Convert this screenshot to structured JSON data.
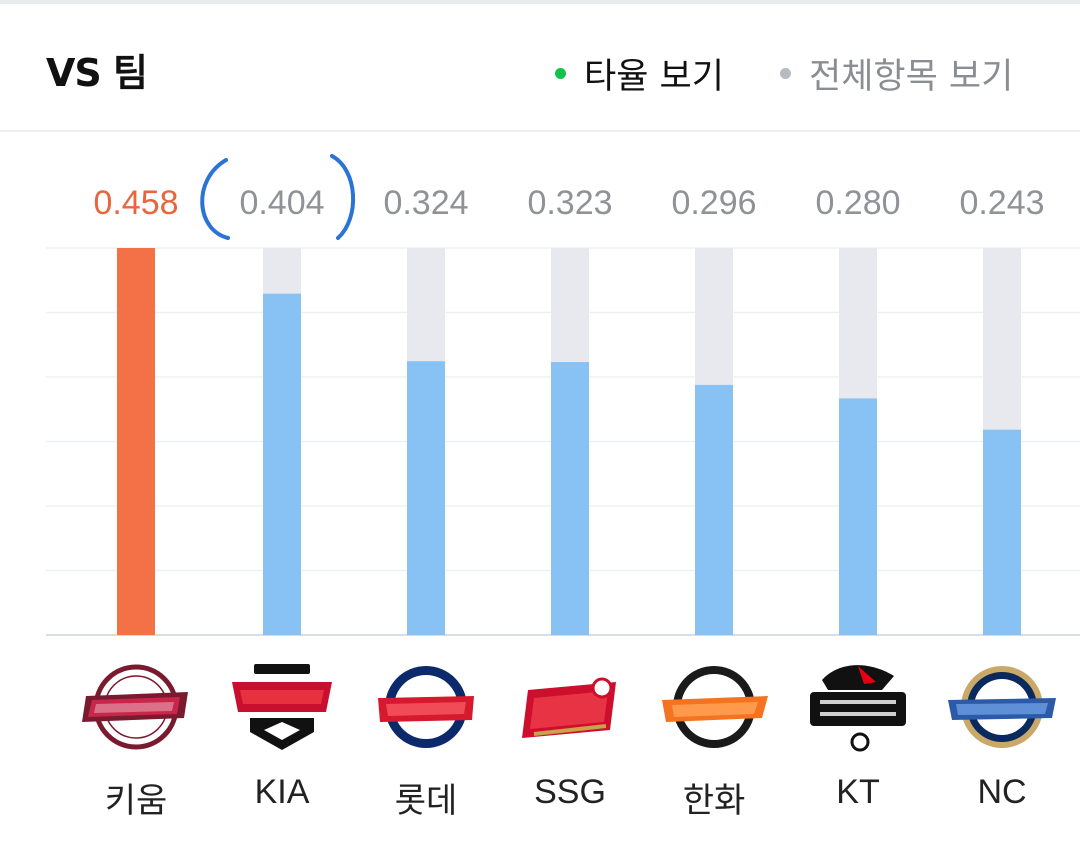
{
  "header": {
    "title": "VS 팀",
    "toggle_active": "타율 보기",
    "toggle_inactive": "전체항목 보기"
  },
  "colors": {
    "highlight_bar": "#f47148",
    "bar": "#88c2f5",
    "bar_track": "#e7e9ee",
    "highlight_value": "#e8663e",
    "value": "#8f9296",
    "annotation": "#2b74d6",
    "active_dot": "#14c24a"
  },
  "chart_data": {
    "type": "bar",
    "categories": [
      "키움",
      "KIA",
      "롯데",
      "SSG",
      "한화",
      "KT",
      "NC"
    ],
    "values": [
      0.458,
      0.404,
      0.324,
      0.323,
      0.296,
      0.28,
      0.243
    ],
    "value_labels": [
      "0.458",
      "0.404",
      "0.324",
      "0.323",
      "0.296",
      "0.280",
      "0.243"
    ],
    "highlight_index": 0,
    "annotated_index": 1,
    "ylim": [
      0,
      0.458
    ],
    "grid": true,
    "logos": [
      "kiwoom-heroes-logo",
      "kia-tigers-logo",
      "lotte-giants-logo",
      "ssg-landers-logo",
      "hanwha-eagles-logo",
      "kt-wiz-logo",
      "nc-dinos-logo"
    ]
  }
}
